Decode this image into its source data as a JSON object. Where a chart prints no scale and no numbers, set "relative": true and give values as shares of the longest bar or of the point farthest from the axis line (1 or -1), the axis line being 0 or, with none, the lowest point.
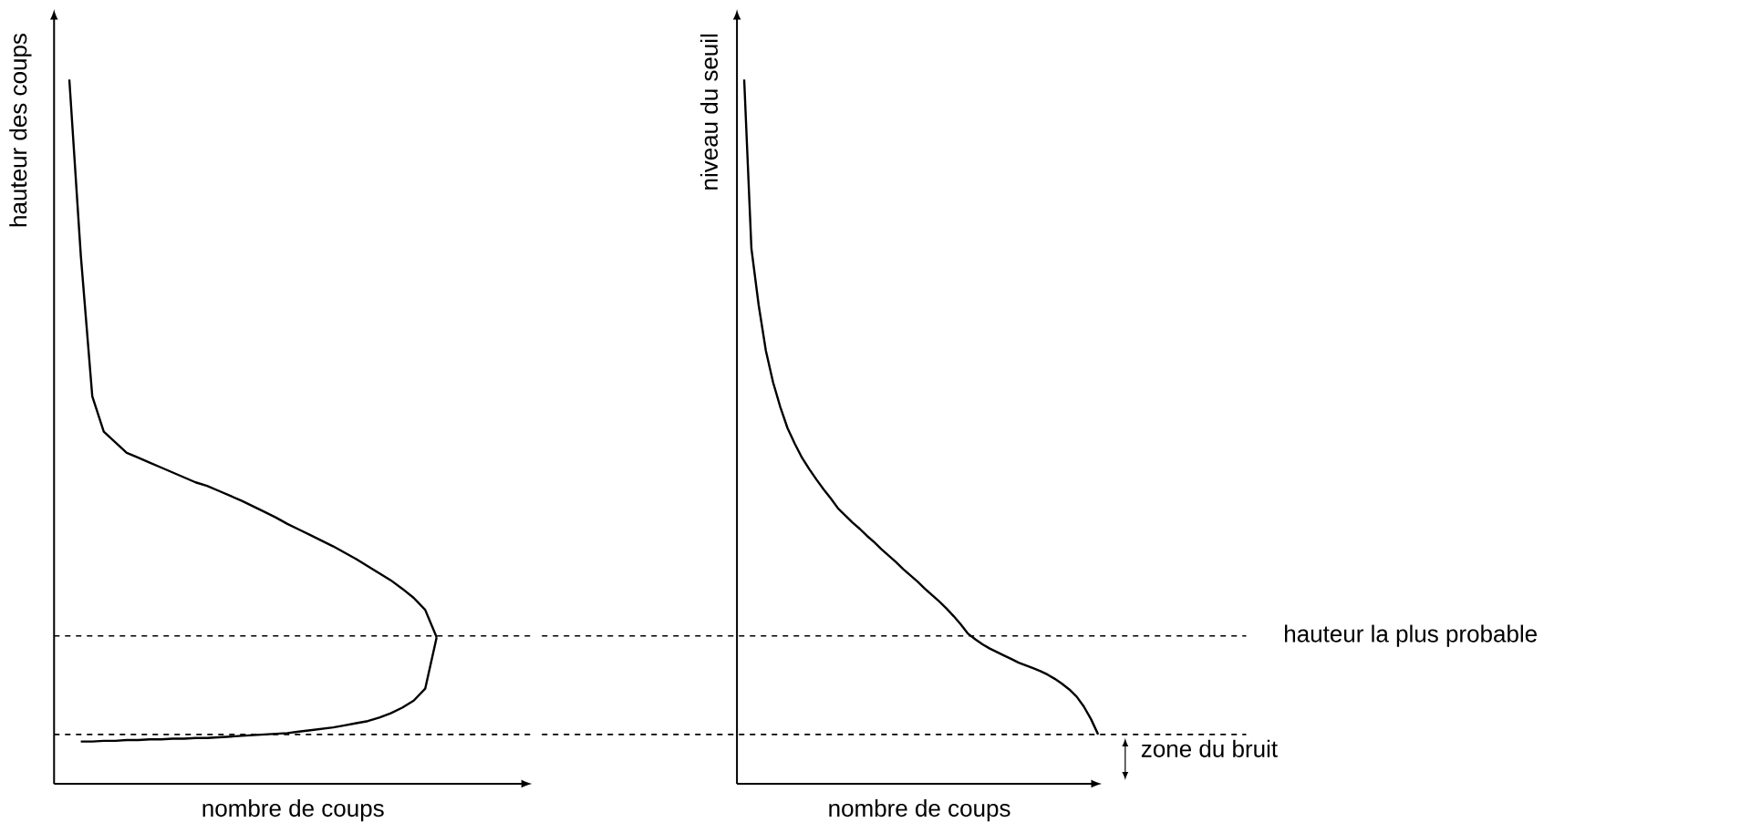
{
  "chart_data": [
    {
      "type": "line",
      "relative": true,
      "tick_labels": false,
      "xlabel": "nombre de coups",
      "ylabel": "hauteur des coups",
      "categories": [
        null,
        null,
        null,
        null,
        null,
        null,
        null,
        null,
        null,
        null,
        null,
        null,
        null,
        null,
        null,
        null,
        null,
        null,
        null,
        null,
        null,
        null,
        null,
        null,
        null,
        null,
        null,
        null,
        null,
        null,
        null,
        null,
        null
      ],
      "series": [
        {
          "color": "#000000",
          "values": [
            1.0,
            0.75,
            0.55,
            0.5,
            0.485,
            0.47,
            0.463,
            0.456,
            0.449,
            0.442,
            0.435,
            0.428,
            0.423,
            0.416,
            0.409,
            0.402,
            0.394,
            0.386,
            0.378,
            0.369,
            0.361,
            0.353,
            0.345,
            0.337,
            0.328,
            0.319,
            0.309,
            0.299,
            0.289,
            0.277,
            0.264,
            0.247,
            0.208
          ]
        },
        {
          "color": "#000000",
          "values": [
            null,
            0.06,
            0.06,
            0.061,
            0.061,
            0.062,
            0.062,
            0.063,
            0.063,
            0.064,
            0.064,
            0.065,
            0.065,
            0.066,
            0.067,
            0.068,
            0.069,
            0.07,
            0.071,
            0.072,
            0.074,
            0.076,
            0.078,
            0.08,
            0.083,
            0.086,
            0.089,
            0.094,
            0.1,
            0.108,
            0.118,
            0.135,
            0.208
          ]
        }
      ],
      "ref_lines": [
        {
          "axis": "y",
          "value": 0.21,
          "line_style": "dashed"
        },
        {
          "axis": "y",
          "value": 0.07,
          "line_style": "dashed"
        }
      ]
    },
    {
      "type": "line",
      "relative": true,
      "tick_labels": false,
      "xlabel": "nombre de coups",
      "ylabel": "niveau du seuil",
      "categories": [
        null,
        null,
        null,
        null,
        null,
        null,
        null,
        null,
        null,
        null,
        null,
        null,
        null,
        null,
        null,
        null,
        null,
        null,
        null,
        null,
        null,
        null,
        null,
        null,
        null,
        null,
        null,
        null,
        null,
        null,
        null,
        null,
        null,
        null,
        null,
        null,
        null,
        null,
        null,
        null,
        null,
        null,
        null,
        null,
        null,
        null,
        null,
        null,
        null,
        null
      ],
      "series": [
        {
          "color": "#000000",
          "values": [
            1.0,
            0.76,
            0.68,
            0.615,
            0.57,
            0.535,
            0.505,
            0.483,
            0.463,
            0.447,
            0.432,
            0.418,
            0.405,
            0.391,
            0.381,
            0.371,
            0.362,
            0.352,
            0.343,
            0.333,
            0.324,
            0.315,
            0.305,
            0.296,
            0.287,
            0.277,
            0.268,
            0.259,
            0.249,
            0.238,
            0.226,
            0.213,
            0.205,
            0.198,
            0.192,
            0.187,
            0.182,
            0.177,
            0.172,
            0.168,
            0.164,
            0.16,
            0.155,
            0.149,
            0.142,
            0.134,
            0.124,
            0.11,
            0.092,
            0.07
          ]
        }
      ],
      "ref_lines": [
        {
          "axis": "y",
          "value": 0.21,
          "label": "hauteur la plus probable",
          "line_style": "dashed"
        },
        {
          "axis": "y",
          "value": 0.07,
          "line_style": "dashed"
        }
      ],
      "annotations": [
        "zone du bruit"
      ]
    }
  ]
}
